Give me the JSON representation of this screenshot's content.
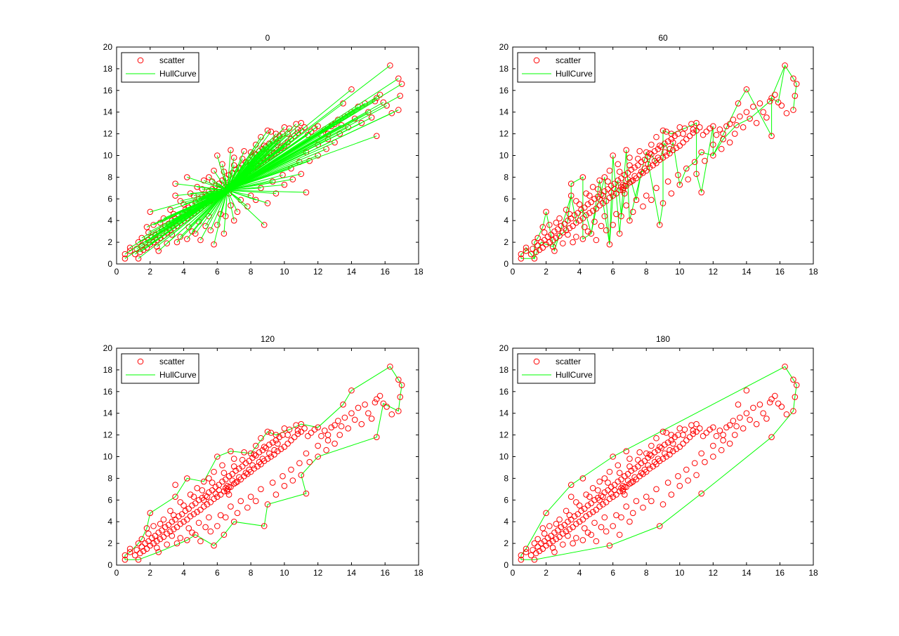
{
  "figure": {
    "background": "#ffffff",
    "scatter_color": "#ff0000",
    "hull_color": "#00ff00",
    "axis_color": "#000000"
  },
  "chart_data": [
    {
      "type": "scatter",
      "title": "0",
      "xlabel": "",
      "ylabel": "",
      "xlim": [
        0,
        18
      ],
      "ylim": [
        0,
        20
      ],
      "xticks": [
        "0",
        "2",
        "4",
        "6",
        "8",
        "10",
        "12",
        "14",
        "16",
        "18"
      ],
      "yticks": [
        "0",
        "2",
        "4",
        "6",
        "8",
        "10",
        "12",
        "14",
        "16",
        "18",
        "20"
      ],
      "grid": false,
      "legend": {
        "placement": "top-left",
        "entries": [
          "scatter",
          "HullCurve"
        ]
      },
      "series": [
        {
          "name": "scatter",
          "marker": "open-circle",
          "color": "#ff0000"
        },
        {
          "name": "HullCurve",
          "marker": "line",
          "color": "#00ff00"
        }
      ],
      "hull_mode": "star",
      "hull_center": [
        6.6,
        6.8
      ]
    },
    {
      "type": "scatter",
      "title": "60",
      "xlabel": "",
      "ylabel": "",
      "xlim": [
        0,
        18
      ],
      "ylim": [
        0,
        20
      ],
      "xticks": [
        "0",
        "2",
        "4",
        "6",
        "8",
        "10",
        "12",
        "14",
        "16",
        "18"
      ],
      "yticks": [
        "0",
        "2",
        "4",
        "6",
        "8",
        "10",
        "12",
        "14",
        "16",
        "18",
        "20"
      ],
      "grid": false,
      "legend": {
        "placement": "top-left",
        "entries": [
          "scatter",
          "HullCurve"
        ]
      },
      "series": [
        {
          "name": "scatter",
          "marker": "open-circle",
          "color": "#ff0000"
        },
        {
          "name": "HullCurve",
          "marker": "line",
          "color": "#00ff00"
        }
      ],
      "hull_mode": "spiky"
    },
    {
      "type": "scatter",
      "title": "120",
      "xlabel": "",
      "ylabel": "",
      "xlim": [
        0,
        18
      ],
      "ylim": [
        0,
        20
      ],
      "xticks": [
        "0",
        "2",
        "4",
        "6",
        "8",
        "10",
        "12",
        "14",
        "16",
        "18"
      ],
      "yticks": [
        "0",
        "2",
        "4",
        "6",
        "8",
        "10",
        "12",
        "14",
        "16",
        "18",
        "20"
      ],
      "grid": false,
      "legend": {
        "placement": "top-left",
        "entries": [
          "scatter",
          "HullCurve"
        ]
      },
      "series": [
        {
          "name": "scatter",
          "marker": "open-circle",
          "color": "#ff0000"
        },
        {
          "name": "HullCurve",
          "marker": "line",
          "color": "#00ff00"
        }
      ],
      "hull_mode": "concave",
      "hull_path": [
        [
          0.5,
          0.5
        ],
        [
          0.5,
          0.9
        ],
        [
          0.8,
          1.2
        ],
        [
          1.3,
          2.0
        ],
        [
          1.5,
          2.4
        ],
        [
          1.8,
          3.4
        ],
        [
          2.0,
          4.8
        ],
        [
          3.5,
          6.3
        ],
        [
          4.2,
          8.0
        ],
        [
          5.2,
          7.7
        ],
        [
          6.0,
          10.0
        ],
        [
          6.8,
          10.5
        ],
        [
          8.0,
          10.3
        ],
        [
          9.0,
          12.3
        ],
        [
          9.5,
          12.0
        ],
        [
          10.3,
          12.5
        ],
        [
          11.0,
          13.0
        ],
        [
          12.0,
          12.7
        ],
        [
          13.5,
          14.8
        ],
        [
          14.0,
          16.1
        ],
        [
          16.3,
          18.3
        ],
        [
          16.8,
          17.1
        ],
        [
          17.0,
          16.6
        ],
        [
          16.9,
          15.5
        ],
        [
          16.8,
          14.2
        ],
        [
          15.9,
          14.9
        ],
        [
          15.5,
          11.8
        ],
        [
          12.0,
          10.0
        ],
        [
          11.0,
          8.3
        ],
        [
          11.3,
          6.6
        ],
        [
          9.0,
          5.6
        ],
        [
          8.8,
          3.6
        ],
        [
          7.0,
          4.0
        ],
        [
          6.4,
          2.8
        ],
        [
          5.8,
          1.8
        ],
        [
          4.7,
          2.8
        ],
        [
          4.2,
          2.3
        ],
        [
          2.5,
          1.2
        ],
        [
          1.3,
          0.5
        ],
        [
          0.5,
          0.5
        ]
      ]
    },
    {
      "type": "scatter",
      "title": "180",
      "xlabel": "",
      "ylabel": "",
      "xlim": [
        0,
        18
      ],
      "ylim": [
        0,
        20
      ],
      "xticks": [
        "0",
        "2",
        "4",
        "6",
        "8",
        "10",
        "12",
        "14",
        "16",
        "18"
      ],
      "yticks": [
        "0",
        "2",
        "4",
        "6",
        "8",
        "10",
        "12",
        "14",
        "16",
        "18",
        "20"
      ],
      "grid": false,
      "legend": {
        "placement": "top-left",
        "entries": [
          "scatter",
          "HullCurve"
        ]
      },
      "series": [
        {
          "name": "scatter",
          "marker": "open-circle",
          "color": "#ff0000"
        },
        {
          "name": "HullCurve",
          "marker": "line",
          "color": "#00ff00"
        }
      ],
      "hull_mode": "convex",
      "hull_path": [
        [
          0.5,
          0.5
        ],
        [
          0.5,
          0.9
        ],
        [
          0.8,
          1.5
        ],
        [
          2.0,
          4.8
        ],
        [
          3.5,
          7.4
        ],
        [
          6.0,
          10.0
        ],
        [
          16.3,
          18.3
        ],
        [
          16.8,
          17.1
        ],
        [
          17.0,
          16.6
        ],
        [
          16.9,
          15.5
        ],
        [
          16.8,
          14.2
        ],
        [
          15.5,
          11.8
        ],
        [
          11.3,
          6.6
        ],
        [
          8.8,
          3.6
        ],
        [
          5.8,
          1.8
        ],
        [
          1.3,
          0.5
        ],
        [
          0.5,
          0.5
        ]
      ]
    }
  ],
  "scatter_points": [
    [
      0.5,
      0.5
    ],
    [
      0.5,
      0.9
    ],
    [
      0.8,
      1.2
    ],
    [
      0.8,
      1.5
    ],
    [
      1.3,
      0.5
    ],
    [
      1.3,
      2.0
    ],
    [
      1.5,
      2.4
    ],
    [
      1.8,
      3.4
    ],
    [
      2.0,
      4.8
    ],
    [
      2.5,
      1.2
    ],
    [
      3.5,
      6.3
    ],
    [
      3.5,
      7.4
    ],
    [
      4.2,
      8.0
    ],
    [
      4.2,
      2.3
    ],
    [
      4.7,
      2.8
    ],
    [
      5.2,
      7.7
    ],
    [
      5.8,
      1.8
    ],
    [
      6.0,
      10.0
    ],
    [
      6.4,
      2.8
    ],
    [
      6.8,
      10.5
    ],
    [
      7.0,
      4.0
    ],
    [
      8.0,
      10.3
    ],
    [
      8.8,
      3.6
    ],
    [
      9.0,
      5.6
    ],
    [
      9.0,
      12.3
    ],
    [
      9.5,
      12.0
    ],
    [
      10.3,
      12.5
    ],
    [
      11.0,
      13.0
    ],
    [
      11.0,
      8.3
    ],
    [
      11.3,
      6.6
    ],
    [
      12.0,
      12.7
    ],
    [
      12.0,
      10.0
    ],
    [
      13.5,
      14.8
    ],
    [
      14.0,
      16.1
    ],
    [
      15.5,
      11.8
    ],
    [
      15.5,
      15.3
    ],
    [
      15.9,
      14.9
    ],
    [
      16.3,
      18.3
    ],
    [
      16.8,
      17.1
    ],
    [
      17.0,
      16.6
    ],
    [
      16.9,
      15.5
    ],
    [
      16.8,
      14.2
    ],
    [
      1.1,
      0.9
    ],
    [
      1.2,
      1.4
    ],
    [
      1.4,
      1.1
    ],
    [
      1.5,
      1.7
    ],
    [
      1.6,
      1.3
    ],
    [
      1.7,
      2.0
    ],
    [
      1.8,
      1.5
    ],
    [
      1.9,
      2.2
    ],
    [
      2.0,
      1.8
    ],
    [
      2.1,
      2.5
    ],
    [
      2.2,
      2.0
    ],
    [
      2.3,
      2.7
    ],
    [
      2.4,
      2.2
    ],
    [
      2.5,
      3.0
    ],
    [
      2.6,
      2.4
    ],
    [
      2.7,
      3.2
    ],
    [
      2.8,
      2.6
    ],
    [
      2.9,
      3.5
    ],
    [
      3.0,
      2.9
    ],
    [
      3.1,
      3.7
    ],
    [
      3.2,
      3.1
    ],
    [
      3.3,
      4.0
    ],
    [
      3.4,
      3.3
    ],
    [
      3.5,
      4.2
    ],
    [
      3.6,
      3.5
    ],
    [
      3.7,
      4.5
    ],
    [
      3.8,
      3.8
    ],
    [
      3.9,
      4.7
    ],
    [
      4.0,
      4.0
    ],
    [
      4.1,
      5.0
    ],
    [
      4.2,
      4.2
    ],
    [
      4.3,
      5.2
    ],
    [
      4.4,
      4.5
    ],
    [
      4.5,
      5.5
    ],
    [
      4.6,
      4.7
    ],
    [
      4.7,
      5.7
    ],
    [
      4.8,
      4.9
    ],
    [
      4.9,
      6.0
    ],
    [
      5.0,
      5.1
    ],
    [
      5.1,
      6.2
    ],
    [
      5.2,
      5.4
    ],
    [
      5.3,
      6.4
    ],
    [
      5.4,
      5.6
    ],
    [
      5.5,
      6.7
    ],
    [
      5.6,
      5.8
    ],
    [
      5.7,
      6.9
    ],
    [
      5.8,
      6.1
    ],
    [
      5.9,
      7.2
    ],
    [
      6.0,
      6.3
    ],
    [
      6.1,
      7.4
    ],
    [
      6.2,
      6.5
    ],
    [
      6.3,
      7.7
    ],
    [
      6.4,
      6.8
    ],
    [
      6.5,
      7.9
    ],
    [
      6.6,
      7.0
    ],
    [
      6.7,
      8.2
    ],
    [
      6.8,
      7.2
    ],
    [
      6.9,
      8.4
    ],
    [
      7.0,
      7.5
    ],
    [
      7.1,
      8.7
    ],
    [
      7.2,
      7.7
    ],
    [
      7.3,
      8.9
    ],
    [
      7.4,
      7.9
    ],
    [
      7.5,
      9.1
    ],
    [
      7.6,
      8.2
    ],
    [
      7.7,
      9.4
    ],
    [
      7.8,
      8.4
    ],
    [
      7.9,
      9.6
    ],
    [
      8.0,
      8.6
    ],
    [
      8.1,
      9.9
    ],
    [
      8.2,
      8.9
    ],
    [
      8.3,
      10.1
    ],
    [
      8.4,
      9.1
    ],
    [
      8.5,
      10.4
    ],
    [
      8.6,
      9.3
    ],
    [
      8.7,
      10.6
    ],
    [
      8.8,
      9.6
    ],
    [
      8.9,
      10.8
    ],
    [
      9.0,
      9.8
    ],
    [
      9.1,
      11.1
    ],
    [
      9.2,
      10.0
    ],
    [
      9.3,
      11.3
    ],
    [
      9.4,
      10.2
    ],
    [
      9.5,
      11.5
    ],
    [
      9.6,
      10.5
    ],
    [
      9.7,
      11.8
    ],
    [
      9.8,
      10.7
    ],
    [
      9.9,
      12.0
    ],
    [
      10.0,
      10.9
    ],
    [
      10.2,
      11.2
    ],
    [
      10.4,
      11.5
    ],
    [
      10.6,
      11.8
    ],
    [
      10.8,
      12.1
    ],
    [
      11.0,
      12.3
    ],
    [
      11.2,
      12.6
    ],
    [
      11.4,
      11.9
    ],
    [
      11.6,
      12.2
    ],
    [
      11.8,
      12.5
    ],
    [
      12.2,
      11.9
    ],
    [
      12.4,
      12.4
    ],
    [
      12.6,
      12.0
    ],
    [
      12.8,
      12.7
    ],
    [
      13.0,
      12.9
    ],
    [
      13.2,
      13.3
    ],
    [
      13.4,
      12.8
    ],
    [
      13.6,
      13.6
    ],
    [
      13.8,
      12.6
    ],
    [
      14.0,
      14.0
    ],
    [
      14.2,
      13.4
    ],
    [
      14.4,
      14.5
    ],
    [
      14.6,
      13.0
    ],
    [
      14.8,
      14.8
    ],
    [
      15.0,
      14.0
    ],
    [
      15.2,
      13.5
    ],
    [
      15.4,
      15.0
    ],
    [
      15.7,
      15.6
    ],
    [
      16.1,
      14.6
    ],
    [
      16.4,
      13.9
    ],
    [
      3.0,
      1.9
    ],
    [
      3.8,
      2.5
    ],
    [
      4.5,
      3.0
    ],
    [
      5.3,
      3.5
    ],
    [
      5.0,
      2.2
    ],
    [
      6.0,
      3.6
    ],
    [
      6.5,
      4.4
    ],
    [
      7.2,
      4.8
    ],
    [
      7.8,
      5.3
    ],
    [
      8.3,
      5.9
    ],
    [
      9.5,
      6.5
    ],
    [
      10.0,
      7.3
    ],
    [
      10.5,
      7.8
    ],
    [
      11.5,
      9.5
    ],
    [
      12.5,
      10.6
    ],
    [
      13.0,
      11.2
    ],
    [
      2.2,
      3.6
    ],
    [
      2.8,
      4.2
    ],
    [
      3.2,
      5.0
    ],
    [
      3.8,
      5.8
    ],
    [
      4.4,
      6.5
    ],
    [
      4.8,
      7.1
    ],
    [
      5.5,
      8.0
    ],
    [
      5.8,
      8.6
    ],
    [
      6.3,
      9.2
    ],
    [
      7.0,
      9.8
    ],
    [
      7.6,
      10.4
    ],
    [
      8.3,
      11.0
    ],
    [
      8.6,
      11.7
    ],
    [
      9.2,
      12.2
    ],
    [
      10.0,
      12.6
    ],
    [
      10.7,
      12.9
    ],
    [
      2.4,
      1.6
    ],
    [
      3.3,
      2.7
    ],
    [
      3.6,
      2.0
    ],
    [
      4.3,
      3.4
    ],
    [
      4.9,
      3.9
    ],
    [
      5.5,
      4.4
    ],
    [
      5.6,
      3.1
    ],
    [
      6.2,
      4.6
    ],
    [
      6.8,
      5.4
    ],
    [
      7.4,
      5.9
    ],
    [
      8.0,
      6.3
    ],
    [
      8.6,
      7.0
    ],
    [
      9.3,
      7.6
    ],
    [
      9.9,
      8.2
    ],
    [
      10.4,
      8.8
    ],
    [
      10.9,
      9.4
    ],
    [
      11.3,
      10.3
    ],
    [
      12.0,
      11.0
    ],
    [
      12.6,
      11.5
    ],
    [
      13.3,
      12.0
    ],
    [
      1.9,
      2.9
    ],
    [
      2.6,
      3.8
    ],
    [
      3.4,
      4.6
    ],
    [
      4.0,
      5.5
    ],
    [
      4.6,
      6.3
    ],
    [
      5.1,
      6.9
    ],
    [
      5.7,
      7.6
    ],
    [
      6.4,
      8.5
    ],
    [
      7.0,
      9.1
    ],
    [
      7.5,
      9.7
    ],
    [
      8.2,
      10.2
    ],
    [
      8.8,
      10.9
    ],
    [
      9.6,
      11.2
    ],
    [
      10.2,
      12.0
    ],
    [
      10.8,
      12.4
    ],
    [
      5.2,
      6.0
    ],
    [
      5.4,
      6.3
    ],
    [
      5.9,
      6.6
    ],
    [
      6.1,
      6.9
    ],
    [
      6.6,
      7.3
    ],
    [
      6.9,
      7.8
    ],
    [
      7.1,
      7.6
    ],
    [
      7.3,
      8.1
    ],
    [
      7.7,
      8.5
    ],
    [
      7.9,
      8.8
    ],
    [
      8.1,
      9.2
    ],
    [
      8.5,
      9.5
    ],
    [
      8.7,
      9.8
    ],
    [
      9.1,
      10.3
    ],
    [
      9.4,
      10.6
    ],
    [
      6.6,
      6.8
    ],
    [
      6.7,
      6.5
    ],
    [
      6.5,
      7.1
    ],
    [
      6.7,
      7.2
    ]
  ]
}
